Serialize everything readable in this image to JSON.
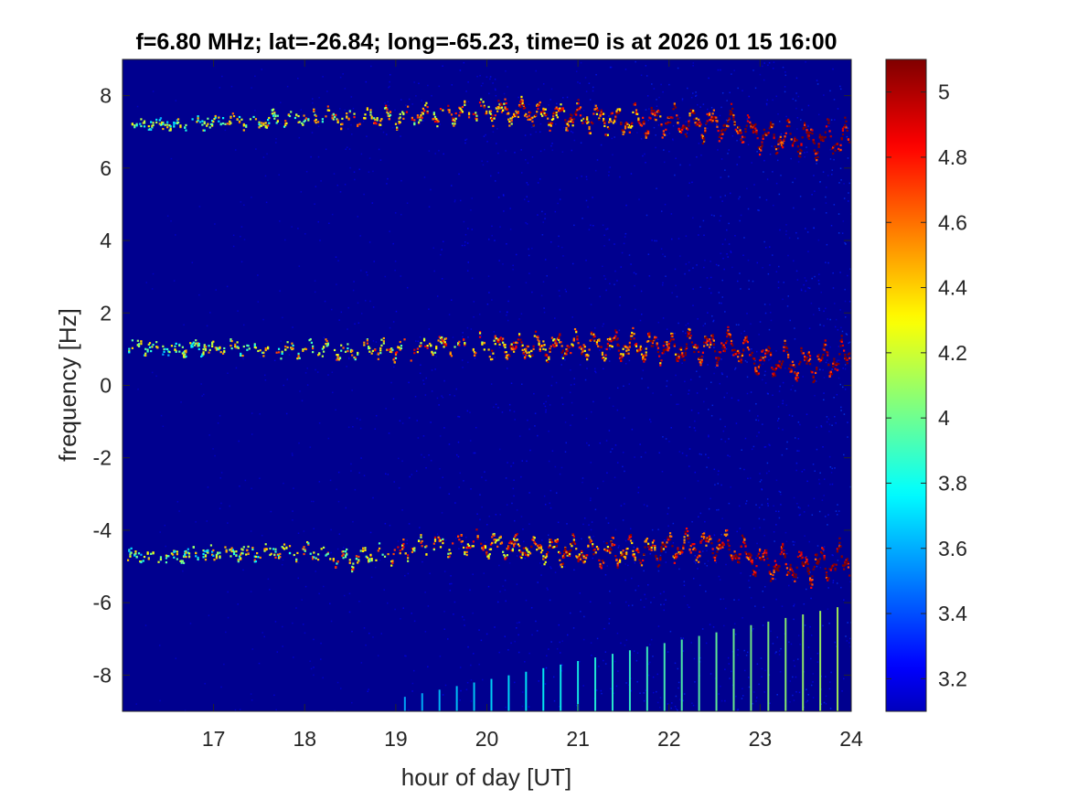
{
  "chart_data": {
    "type": "heatmap",
    "title": "f=6.80 MHz;  lat=-26.84; long=-65.23, time=0 is at 2026 01 15 16:00",
    "xlabel": "hour of day [UT]",
    "ylabel": "frequency [Hz]",
    "xlim": [
      16,
      24
    ],
    "ylim": [
      -9,
      9
    ],
    "xticks": [
      17,
      18,
      19,
      20,
      21,
      22,
      23,
      24
    ],
    "yticks": [
      -8,
      -6,
      -4,
      -2,
      0,
      2,
      4,
      6,
      8
    ],
    "colorbar": {
      "colormap": "jet",
      "clim": [
        3.1,
        5.1
      ],
      "ticks": [
        3.2,
        3.4,
        3.6,
        3.8,
        4,
        4.2,
        4.4,
        4.6,
        4.8,
        5
      ]
    },
    "background_color": "#00008f",
    "traces": [
      {
        "x": [
          16.05,
          16.5,
          17.0,
          17.5,
          18.0,
          18.5,
          19.0,
          19.5,
          20.0,
          20.5,
          21.0,
          21.5,
          22.0,
          22.5,
          22.7,
          23.0,
          23.5,
          24.0
        ],
        "y": [
          7.2,
          7.2,
          7.3,
          7.3,
          7.4,
          7.4,
          7.4,
          7.5,
          7.6,
          7.5,
          7.4,
          7.3,
          7.3,
          7.2,
          7.2,
          6.9,
          6.8,
          6.8
        ]
      },
      {
        "x": [
          16.05,
          16.5,
          17.0,
          17.5,
          18.0,
          18.5,
          19.0,
          19.5,
          20.0,
          20.5,
          21.0,
          21.5,
          22.0,
          22.5,
          22.7,
          23.0,
          23.5,
          24.0
        ],
        "y": [
          1.1,
          1.0,
          1.05,
          1.0,
          1.0,
          0.95,
          1.0,
          1.1,
          1.1,
          1.05,
          1.1,
          1.1,
          1.05,
          1.05,
          1.1,
          0.7,
          0.6,
          0.8
        ]
      },
      {
        "x": [
          16.05,
          16.5,
          17.0,
          17.5,
          18.0,
          18.5,
          19.0,
          19.5,
          20.0,
          20.5,
          21.0,
          21.5,
          22.0,
          22.5,
          22.7,
          23.0,
          23.5,
          24.0
        ],
        "y": [
          -4.7,
          -4.7,
          -4.65,
          -4.6,
          -4.6,
          -4.8,
          -4.6,
          -4.4,
          -4.4,
          -4.5,
          -4.6,
          -4.6,
          -4.5,
          -4.4,
          -4.5,
          -4.9,
          -5.0,
          -4.8
        ]
      }
    ],
    "harmonic_lines": {
      "x_start": 19.1,
      "x_end": 23.9,
      "spacing_hours": 0.19,
      "y_top_start": -8.6,
      "y_top_end": -6.1,
      "y_bottom": -9
    }
  }
}
